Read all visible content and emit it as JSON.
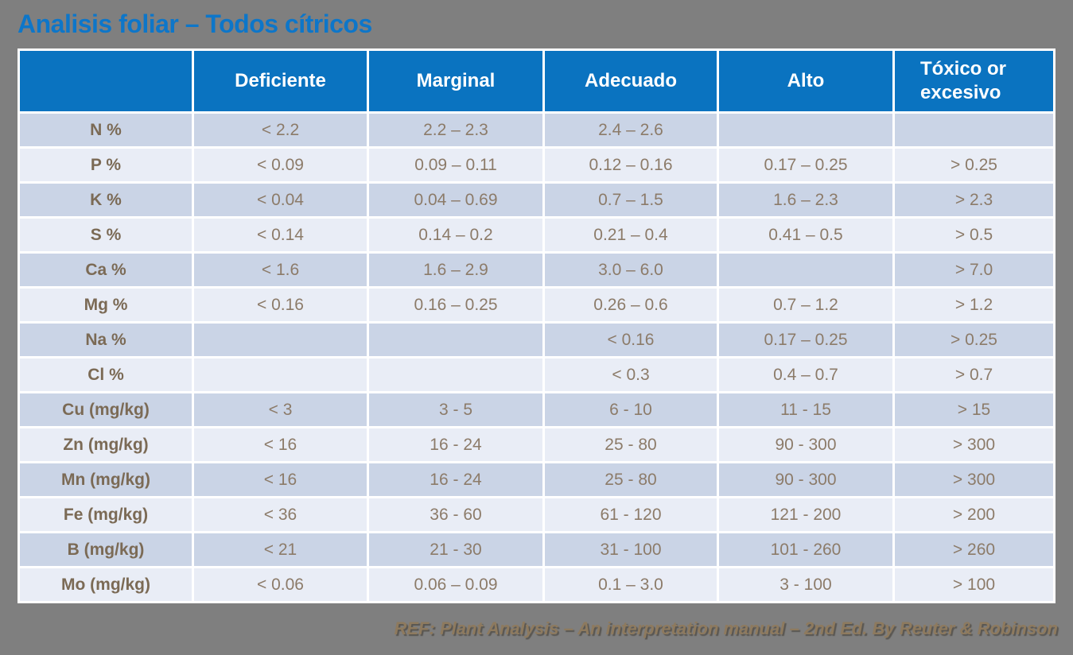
{
  "page": {
    "title": "Analisis foliar – Todos cítricos",
    "footer": "REF: Plant Analysis – An interpretation manual – 2nd Ed. By Reuter & Robinson"
  },
  "colors": {
    "background": "#7f7f7f",
    "title_blue": "#0d76c9",
    "header_blue": "#0a73c0",
    "header_text": "#ffffff",
    "row_dark": "#cad4e6",
    "row_light": "#e9edf6",
    "label_text": "#7b6a55",
    "value_text": "#8c7b69",
    "footer_text": "#8e7a5e",
    "table_border": "#ffffff"
  },
  "chart_data": {
    "type": "table",
    "title": "Analisis foliar – Todos cítricos",
    "columns": [
      "",
      "Deficiente",
      "Marginal",
      "Adecuado",
      "Alto",
      "Tóxico or excesivo"
    ],
    "rows": [
      {
        "label": "N %",
        "values": [
          "< 2.2",
          "2.2 – 2.3",
          "2.4 – 2.6",
          "",
          ""
        ]
      },
      {
        "label": "P %",
        "values": [
          "< 0.09",
          "0.09 – 0.11",
          "0.12 – 0.16",
          "0.17 – 0.25",
          "> 0.25"
        ]
      },
      {
        "label": "K %",
        "values": [
          "< 0.04",
          "0.04 – 0.69",
          "0.7 – 1.5",
          "1.6 – 2.3",
          "> 2.3"
        ]
      },
      {
        "label": "S %",
        "values": [
          "< 0.14",
          "0.14 – 0.2",
          "0.21 – 0.4",
          "0.41 – 0.5",
          "> 0.5"
        ]
      },
      {
        "label": "Ca %",
        "values": [
          "< 1.6",
          "1.6 – 2.9",
          "3.0 – 6.0",
          "",
          "> 7.0"
        ]
      },
      {
        "label": "Mg %",
        "values": [
          "< 0.16",
          "0.16 – 0.25",
          "0.26 – 0.6",
          "0.7 – 1.2",
          "> 1.2"
        ]
      },
      {
        "label": "Na %",
        "values": [
          "",
          "",
          "< 0.16",
          "0.17 – 0.25",
          "> 0.25"
        ]
      },
      {
        "label": "Cl %",
        "values": [
          "",
          "",
          "< 0.3",
          "0.4 – 0.7",
          "> 0.7"
        ]
      },
      {
        "label": "Cu (mg/kg)",
        "values": [
          "< 3",
          "3 - 5",
          "6 - 10",
          "11 - 15",
          "> 15"
        ]
      },
      {
        "label": "Zn (mg/kg)",
        "values": [
          "< 16",
          "16 - 24",
          "25 - 80",
          "90 - 300",
          "> 300"
        ]
      },
      {
        "label": "Mn (mg/kg)",
        "values": [
          "< 16",
          "16 - 24",
          "25 - 80",
          "90 - 300",
          "> 300"
        ]
      },
      {
        "label": "Fe (mg/kg)",
        "values": [
          "< 36",
          "36 - 60",
          "61 - 120",
          "121 - 200",
          "> 200"
        ]
      },
      {
        "label": "B (mg/kg)",
        "values": [
          "< 21",
          "21 - 30",
          "31 - 100",
          "101 - 260",
          "> 260"
        ]
      },
      {
        "label": "Mo (mg/kg)",
        "values": [
          "< 0.06",
          "0.06 – 0.09",
          "0.1 – 3.0",
          "3 - 100",
          "> 100"
        ]
      }
    ]
  }
}
